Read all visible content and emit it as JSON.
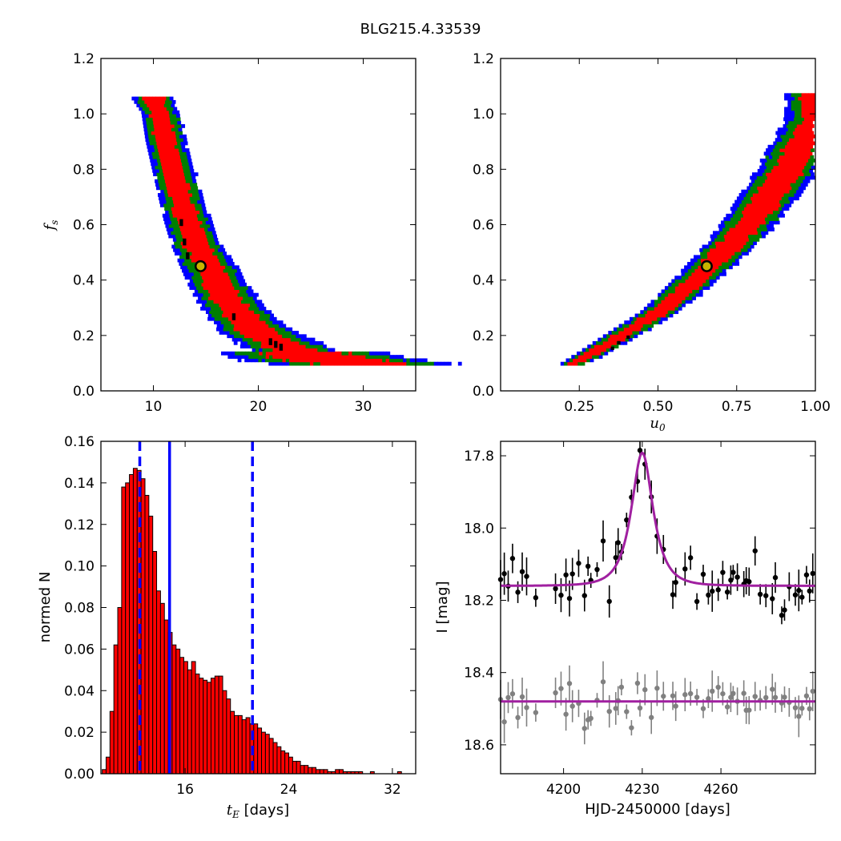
{
  "figure_title": "BLG215.4.33539",
  "colors": {
    "red": "#ff0000",
    "green": "#007f00",
    "blue": "#0000ff",
    "black": "#000000",
    "gold": "#c8b400",
    "purple": "#a020a0",
    "grey": "#808080"
  },
  "chart_data": [
    {
      "id": "panel-tE-fs",
      "type": "heatmap",
      "xlabel": "",
      "ylabel": "f_s",
      "ylabel_display": {
        "base": "f",
        "sub": "s"
      },
      "xlim": [
        5,
        35
      ],
      "ylim": [
        0,
        1.2
      ],
      "xticks": [
        10,
        20,
        30
      ],
      "yticks": [
        0.0,
        0.2,
        0.4,
        0.6,
        0.8,
        1.0,
        1.2
      ],
      "ytick_labels": [
        "0.0",
        "0.2",
        "0.4",
        "0.6",
        "0.8",
        "1.0",
        "1.2"
      ],
      "best_fit_marker": {
        "x": 14.5,
        "y": 0.45
      },
      "ridge": [
        [
          9.8,
          1.05
        ],
        [
          10.5,
          1.0
        ],
        [
          11,
          0.9
        ],
        [
          12,
          0.75
        ],
        [
          13,
          0.62
        ],
        [
          14,
          0.52
        ],
        [
          15,
          0.45
        ],
        [
          16,
          0.38
        ],
        [
          17,
          0.32
        ],
        [
          18,
          0.27
        ],
        [
          20,
          0.2
        ],
        [
          22,
          0.16
        ],
        [
          25,
          0.12
        ],
        [
          28,
          0.1
        ],
        [
          30,
          0.09
        ]
      ],
      "ridge_halfwidth": [
        1.0,
        0.9,
        0.95,
        1.0,
        1.1,
        1.2,
        1.3,
        1.4,
        1.5,
        1.6,
        1.8,
        2.0,
        2.2,
        2.4,
        2.5
      ],
      "outer_color": "#0000ff",
      "middle_color": "#007f00",
      "inner_color": "#ff0000"
    },
    {
      "id": "panel-u0-fs",
      "type": "heatmap",
      "xlabel": "u_0",
      "xlabel_display": {
        "base": "u",
        "sub": "0"
      },
      "ylabel": "",
      "xlim": [
        0.0,
        1.0
      ],
      "ylim": [
        0,
        1.2
      ],
      "xticks": [
        0.25,
        0.5,
        0.75,
        1.0
      ],
      "xtick_labels": [
        "0.25",
        "0.50",
        "0.75",
        "1.00"
      ],
      "yticks": [
        0.0,
        0.2,
        0.4,
        0.6,
        0.8,
        1.0,
        1.2
      ],
      "ytick_labels": [
        "0.0",
        "0.2",
        "0.4",
        "0.6",
        "0.8",
        "1.0",
        "1.2"
      ],
      "best_fit_marker": {
        "x": 0.655,
        "y": 0.45
      },
      "ridge": [
        [
          0.22,
          0.09
        ],
        [
          0.3,
          0.14
        ],
        [
          0.4,
          0.21
        ],
        [
          0.5,
          0.28
        ],
        [
          0.6,
          0.38
        ],
        [
          0.7,
          0.49
        ],
        [
          0.8,
          0.62
        ],
        [
          0.9,
          0.78
        ],
        [
          0.97,
          0.92
        ],
        [
          1.0,
          0.98
        ]
      ],
      "ridge_halfwidth": [
        0.02,
        0.025,
        0.028,
        0.03,
        0.035,
        0.04,
        0.045,
        0.05,
        0.05,
        0.05
      ]
    },
    {
      "id": "panel-tE-hist",
      "type": "bar",
      "xlabel": "t_E  [days]",
      "xlabel_display": {
        "base": "t",
        "sub": "E",
        "rest": " [days]"
      },
      "ylabel": "normed N",
      "xlim": [
        9.5,
        33.8
      ],
      "ylim": [
        0,
        0.16
      ],
      "xticks": [
        16,
        24,
        32
      ],
      "yticks": [
        0.0,
        0.02,
        0.04,
        0.06,
        0.08,
        0.1,
        0.12,
        0.14,
        0.16
      ],
      "ytick_labels": [
        "0.00",
        "0.02",
        "0.04",
        "0.06",
        "0.08",
        "0.10",
        "0.12",
        "0.14",
        "0.16"
      ],
      "bin_start": 9.6,
      "bin_width": 0.3,
      "values": [
        0.002,
        0.008,
        0.03,
        0.062,
        0.08,
        0.138,
        0.14,
        0.144,
        0.147,
        0.146,
        0.142,
        0.134,
        0.124,
        0.107,
        0.088,
        0.082,
        0.074,
        0.068,
        0.062,
        0.06,
        0.056,
        0.054,
        0.05,
        0.054,
        0.048,
        0.046,
        0.045,
        0.044,
        0.046,
        0.047,
        0.047,
        0.04,
        0.036,
        0.03,
        0.028,
        0.028,
        0.026,
        0.027,
        0.024,
        0.024,
        0.022,
        0.02,
        0.019,
        0.017,
        0.015,
        0.013,
        0.011,
        0.01,
        0.008,
        0.006,
        0.006,
        0.004,
        0.004,
        0.003,
        0.003,
        0.002,
        0.002,
        0.002,
        0.001,
        0.001,
        0.002,
        0.002,
        0.001,
        0.001,
        0.001,
        0.001,
        0.001,
        0.0,
        0.0,
        0.001,
        0.0,
        0.0,
        0.0,
        0.0,
        0.0,
        0.0,
        0.001,
        0.0,
        0.0,
        0.0,
        0.001
      ],
      "median_line": 14.8,
      "dashed_lines": [
        12.5,
        21.2
      ],
      "bar_color": "#ff0000",
      "line_color": "#0000ff"
    },
    {
      "id": "panel-lightcurve",
      "type": "scatter",
      "xlabel": "HJD-2450000 [days]",
      "ylabel": "I [mag]",
      "xlim": [
        4176,
        4296
      ],
      "ylim": [
        18.68,
        17.76
      ],
      "xticks": [
        4200,
        4230,
        4260
      ],
      "yticks": [
        17.8,
        18.0,
        18.2,
        18.4,
        18.6
      ],
      "ytick_labels": [
        "17.8",
        "18.0",
        "18.2",
        "18.4",
        "18.6"
      ],
      "model": {
        "t0": 4230.0,
        "tE": 14.5,
        "u0": 0.655,
        "fs": 0.45,
        "I_base": 18.16
      },
      "residual_baseline": 18.48,
      "data_color": "#000000",
      "residual_color": "#808080",
      "model_color": "#a020a0"
    }
  ]
}
